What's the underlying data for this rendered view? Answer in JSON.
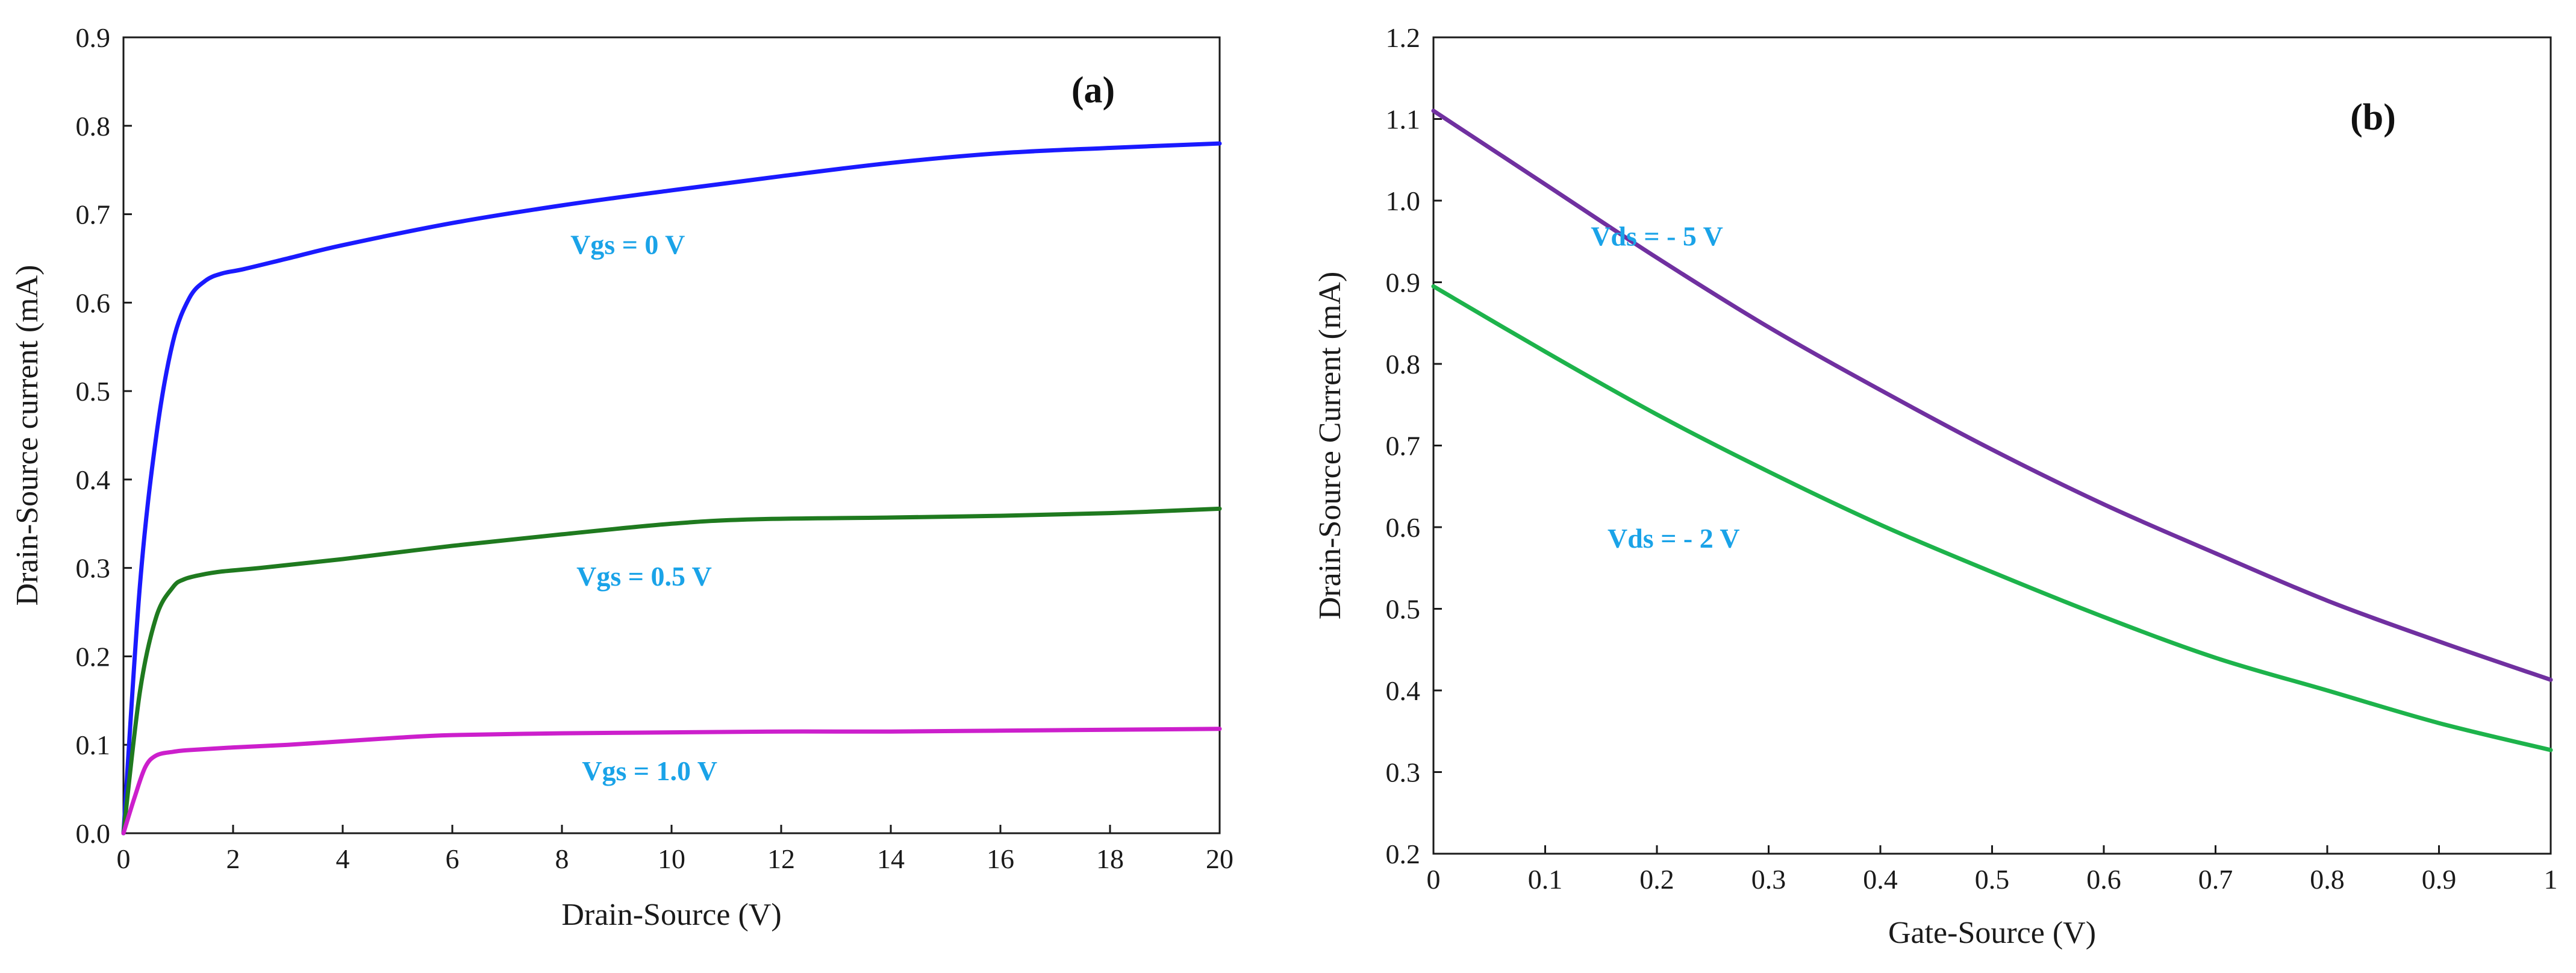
{
  "chart_data": [
    {
      "type": "line",
      "panel_label": "(a)",
      "title": "",
      "xlabel": "Drain-Source  (V)",
      "ylabel": "Drain-Source  current  (mA)",
      "xlim": [
        0,
        20
      ],
      "ylim": [
        0,
        0.9
      ],
      "xticks": [
        0,
        2,
        4,
        6,
        8,
        10,
        12,
        14,
        16,
        18,
        20
      ],
      "xtick_labels": [
        "0",
        "2",
        "4",
        "6",
        "8",
        "10",
        "12",
        "14",
        "16",
        "18",
        "20"
      ],
      "yticks": [
        0,
        0.1,
        0.2,
        0.3,
        0.4,
        0.5,
        0.6,
        0.7,
        0.8,
        0.9
      ],
      "ytick_labels": [
        "0.0",
        "0.1",
        "0.2",
        "0.3",
        "0.4",
        "0.5",
        "0.6",
        "0.7",
        "0.8",
        "0.9"
      ],
      "label_color": "#1aa3e8",
      "series": [
        {
          "name": "Vgs = 0 V",
          "color": "#1a1aff",
          "label_pos": [
            9.2,
            0.655
          ],
          "x": [
            0,
            0.3,
            0.6,
            0.9,
            1.2,
            1.5,
            1.8,
            2.2,
            3,
            4,
            6,
            8,
            10,
            12,
            14,
            16,
            18,
            20
          ],
          "y": [
            0,
            0.28,
            0.45,
            0.555,
            0.605,
            0.625,
            0.633,
            0.638,
            0.65,
            0.665,
            0.69,
            0.71,
            0.727,
            0.743,
            0.758,
            0.769,
            0.775,
            0.78
          ]
        },
        {
          "name": "Vgs = 0.5 V",
          "color": "#1f7a1f",
          "label_pos": [
            9.5,
            0.28
          ],
          "x": [
            0,
            0.3,
            0.6,
            0.9,
            1.1,
            1.4,
            1.8,
            2.5,
            4,
            6,
            8,
            10,
            11.5,
            14,
            16,
            18,
            20
          ],
          "y": [
            0,
            0.16,
            0.245,
            0.278,
            0.287,
            0.292,
            0.296,
            0.3,
            0.31,
            0.325,
            0.338,
            0.35,
            0.355,
            0.357,
            0.359,
            0.362,
            0.367
          ]
        },
        {
          "name": "Vgs = 1.0 V",
          "color": "#cc1fcc",
          "label_pos": [
            9.6,
            0.06
          ],
          "x": [
            0,
            0.2,
            0.4,
            0.6,
            0.9,
            1.2,
            2,
            3,
            4,
            5,
            6,
            8,
            10,
            12,
            14,
            16,
            18,
            20
          ],
          "y": [
            0,
            0.04,
            0.075,
            0.088,
            0.092,
            0.094,
            0.097,
            0.1,
            0.104,
            0.108,
            0.111,
            0.113,
            0.114,
            0.115,
            0.115,
            0.116,
            0.117,
            0.118
          ]
        }
      ]
    },
    {
      "type": "line",
      "panel_label": "(b)",
      "title": "",
      "xlabel": "Gate-Source  (V)",
      "ylabel": "Drain-Source  Current  (mA)",
      "xlim": [
        0,
        1
      ],
      "ylim": [
        0.2,
        1.2
      ],
      "xticks": [
        0,
        0.1,
        0.2,
        0.3,
        0.4,
        0.5,
        0.6,
        0.7,
        0.8,
        0.9,
        1
      ],
      "xtick_labels": [
        "0",
        "0.1",
        "0.2",
        "0.3",
        "0.4",
        "0.5",
        "0.6",
        "0.7",
        "0.8",
        "0.9",
        "1"
      ],
      "yticks": [
        0.2,
        0.3,
        0.4,
        0.5,
        0.6,
        0.7,
        0.8,
        0.9,
        1.0,
        1.1,
        1.2
      ],
      "ytick_labels": [
        "0.2",
        "0.3",
        "0.4",
        "0.5",
        "0.6",
        "0.7",
        "0.8",
        "0.9",
        "1.0",
        "1.1",
        "1.2"
      ],
      "label_color": "#1aa3e8",
      "series": [
        {
          "name": "Vds = - 5 V",
          "color": "#7030a0",
          "label_pos": [
            0.2,
            0.945
          ],
          "x": [
            0,
            0.1,
            0.2,
            0.3,
            0.4,
            0.5,
            0.6,
            0.7,
            0.8,
            0.9,
            1
          ],
          "y": [
            1.11,
            1.02,
            0.93,
            0.845,
            0.768,
            0.695,
            0.628,
            0.568,
            0.51,
            0.46,
            0.413
          ]
        },
        {
          "name": "Vds = - 2 V",
          "color": "#1db34b",
          "label_pos": [
            0.215,
            0.575
          ],
          "x": [
            0,
            0.1,
            0.2,
            0.3,
            0.4,
            0.5,
            0.6,
            0.7,
            0.8,
            0.9,
            1
          ],
          "y": [
            0.895,
            0.815,
            0.738,
            0.668,
            0.603,
            0.545,
            0.49,
            0.44,
            0.4,
            0.36,
            0.327
          ]
        }
      ]
    }
  ]
}
